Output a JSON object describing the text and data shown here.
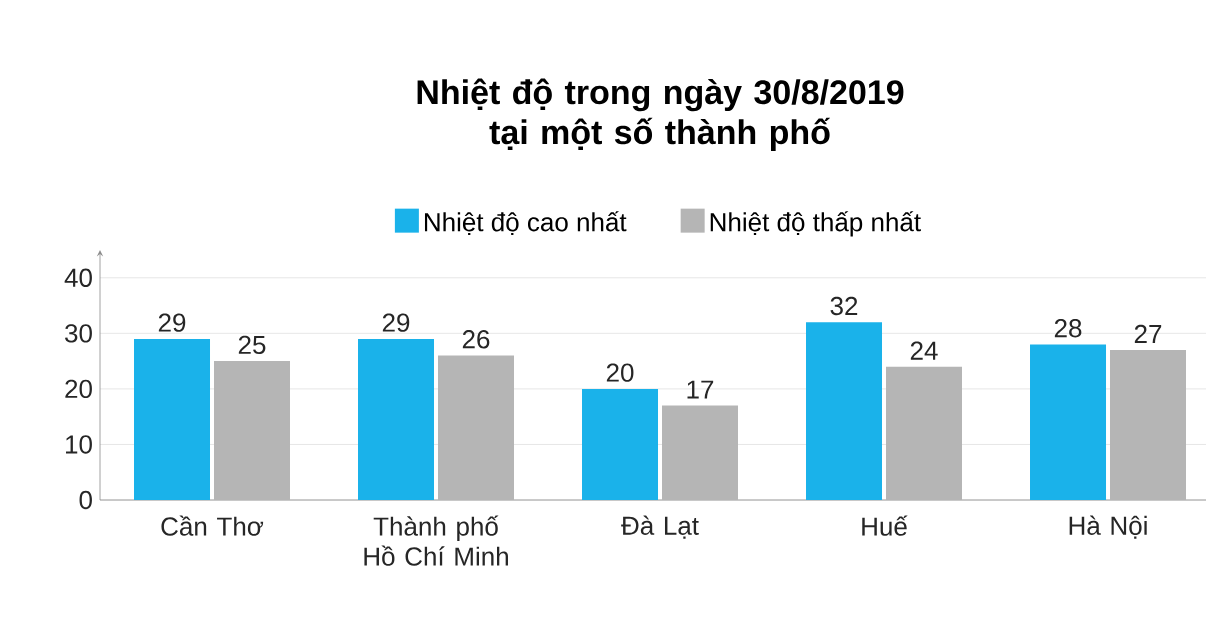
{
  "chart_data": {
    "type": "bar",
    "title": "Nhiệt độ trong ngày 30/8/2019 tại một số thành phố",
    "categories": [
      "Cần Thơ",
      "Thành phố Hồ Chí Minh",
      "Đà Lạt",
      "Huế",
      "Hà Nội"
    ],
    "series": [
      {
        "name": "Nhiệt độ cao nhất",
        "color": "#1ab2ea",
        "values": [
          29,
          29,
          20,
          32,
          28
        ]
      },
      {
        "name": "Nhiệt độ thấp nhất",
        "color": "#b5b5b5",
        "values": [
          25,
          26,
          17,
          24,
          27
        ]
      }
    ],
    "ylim": [
      0,
      45
    ],
    "yticks": [
      0,
      10,
      20,
      30,
      40
    ],
    "grid": "y",
    "legend": "top",
    "data_labels": true
  }
}
